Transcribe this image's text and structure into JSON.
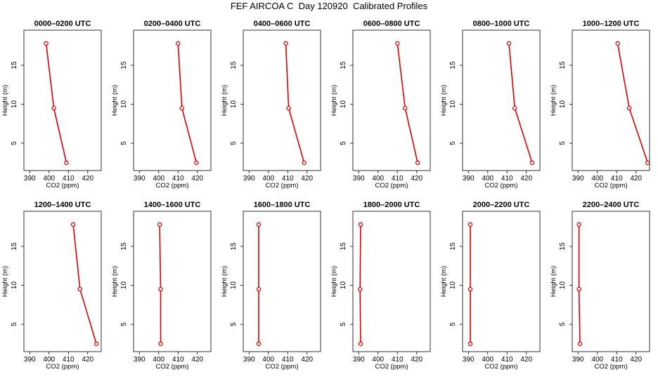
{
  "header": {
    "title": "FEF AIRCOA C  Day 120920  Calibrated Profiles"
  },
  "colors": {
    "profile": "#dd0000",
    "axis": "#000000",
    "background": "#ffffff"
  },
  "chart_data": [
    {
      "type": "line",
      "title": "0000–0200 UTC",
      "xlabel": "CO2 (ppm)",
      "ylabel": "Height (m)",
      "xlim": [
        387,
        427
      ],
      "ylim": [
        1.5,
        19.5
      ],
      "xticks": [
        390,
        400,
        410,
        420
      ],
      "yticks": [
        5,
        10,
        15
      ],
      "heights": [
        2.5,
        9.5,
        17.8
      ],
      "co2": [
        409,
        402.5,
        398.5
      ]
    },
    {
      "type": "line",
      "title": "0200–0400 UTC",
      "xlabel": "CO2 (ppm)",
      "ylabel": "Height (m)",
      "xlim": [
        387,
        427
      ],
      "ylim": [
        1.5,
        19.5
      ],
      "xticks": [
        390,
        400,
        410,
        420
      ],
      "yticks": [
        5,
        10,
        15
      ],
      "heights": [
        2.5,
        9.5,
        17.8
      ],
      "co2": [
        419.5,
        412,
        410
      ]
    },
    {
      "type": "line",
      "title": "0400–0600 UTC",
      "xlabel": "CO2 (ppm)",
      "ylabel": "Height (m)",
      "xlim": [
        387,
        427
      ],
      "ylim": [
        1.5,
        19.5
      ],
      "xticks": [
        390,
        400,
        410,
        420
      ],
      "yticks": [
        5,
        10,
        15
      ],
      "heights": [
        2.5,
        9.5,
        17.8
      ],
      "co2": [
        418.5,
        410.5,
        409
      ]
    },
    {
      "type": "line",
      "title": "0600–0800 UTC",
      "xlabel": "CO2 (ppm)",
      "ylabel": "Height (m)",
      "xlim": [
        387,
        427
      ],
      "ylim": [
        1.5,
        19.5
      ],
      "xticks": [
        390,
        400,
        410,
        420
      ],
      "yticks": [
        5,
        10,
        15
      ],
      "heights": [
        2.5,
        9.5,
        17.8
      ],
      "co2": [
        420.5,
        414,
        410
      ]
    },
    {
      "type": "line",
      "title": "0800–1000 UTC",
      "xlabel": "CO2 (ppm)",
      "ylabel": "Height (m)",
      "xlim": [
        387,
        427
      ],
      "ylim": [
        1.5,
        19.5
      ],
      "xticks": [
        390,
        400,
        410,
        420
      ],
      "yticks": [
        5,
        10,
        15
      ],
      "heights": [
        2.5,
        9.5,
        17.8
      ],
      "co2": [
        423,
        414,
        411
      ]
    },
    {
      "type": "line",
      "title": "1000–1200 UTC",
      "xlabel": "CO2 (ppm)",
      "ylabel": "Height (m)",
      "xlim": [
        387,
        427
      ],
      "ylim": [
        1.5,
        19.5
      ],
      "xticks": [
        390,
        400,
        410,
        420
      ],
      "yticks": [
        5,
        10,
        15
      ],
      "heights": [
        2.5,
        9.5,
        17.8
      ],
      "co2": [
        426,
        416.5,
        410.5
      ]
    },
    {
      "type": "line",
      "title": "1200–1400 UTC",
      "xlabel": "CO2 (ppm)",
      "ylabel": "Height (m)",
      "xlim": [
        387,
        427
      ],
      "ylim": [
        1.5,
        19.5
      ],
      "xticks": [
        390,
        400,
        410,
        420
      ],
      "yticks": [
        5,
        10,
        15
      ],
      "heights": [
        2.5,
        9.5,
        17.8
      ],
      "co2": [
        424.5,
        416,
        412.5
      ]
    },
    {
      "type": "line",
      "title": "1400–1600 UTC",
      "xlabel": "CO2 (ppm)",
      "ylabel": "Height (m)",
      "xlim": [
        387,
        427
      ],
      "ylim": [
        1.5,
        19.5
      ],
      "xticks": [
        390,
        400,
        410,
        420
      ],
      "yticks": [
        5,
        10,
        15
      ],
      "heights": [
        2.5,
        9.5,
        17.8
      ],
      "co2": [
        401,
        401,
        400.5
      ]
    },
    {
      "type": "line",
      "title": "1600–1800 UTC",
      "xlabel": "CO2 (ppm)",
      "ylabel": "Height (m)",
      "xlim": [
        387,
        427
      ],
      "ylim": [
        1.5,
        19.5
      ],
      "xticks": [
        390,
        400,
        410,
        420
      ],
      "yticks": [
        5,
        10,
        15
      ],
      "heights": [
        2.5,
        9.5,
        17.8
      ],
      "co2": [
        395,
        395,
        395
      ]
    },
    {
      "type": "line",
      "title": "1800–2000 UTC",
      "xlabel": "CO2 (ppm)",
      "ylabel": "Height (m)",
      "xlim": [
        387,
        427
      ],
      "ylim": [
        1.5,
        19.5
      ],
      "xticks": [
        390,
        400,
        410,
        420
      ],
      "yticks": [
        5,
        10,
        15
      ],
      "heights": [
        2.5,
        9.5,
        17.8
      ],
      "co2": [
        391,
        390.7,
        391
      ]
    },
    {
      "type": "line",
      "title": "2000–2200 UTC",
      "xlabel": "CO2 (ppm)",
      "ylabel": "Height (m)",
      "xlim": [
        387,
        427
      ],
      "ylim": [
        1.5,
        19.5
      ],
      "xticks": [
        390,
        400,
        410,
        420
      ],
      "yticks": [
        5,
        10,
        15
      ],
      "heights": [
        2.5,
        9.5,
        17.8
      ],
      "co2": [
        391,
        391,
        391
      ]
    },
    {
      "type": "line",
      "title": "2200–2400 UTC",
      "xlabel": "CO2 (ppm)",
      "ylabel": "Height (m)",
      "xlim": [
        387,
        427
      ],
      "ylim": [
        1.5,
        19.5
      ],
      "xticks": [
        390,
        400,
        410,
        420
      ],
      "yticks": [
        5,
        10,
        15
      ],
      "heights": [
        2.5,
        9.5,
        17.8
      ],
      "co2": [
        391,
        390.5,
        390.5
      ]
    }
  ]
}
